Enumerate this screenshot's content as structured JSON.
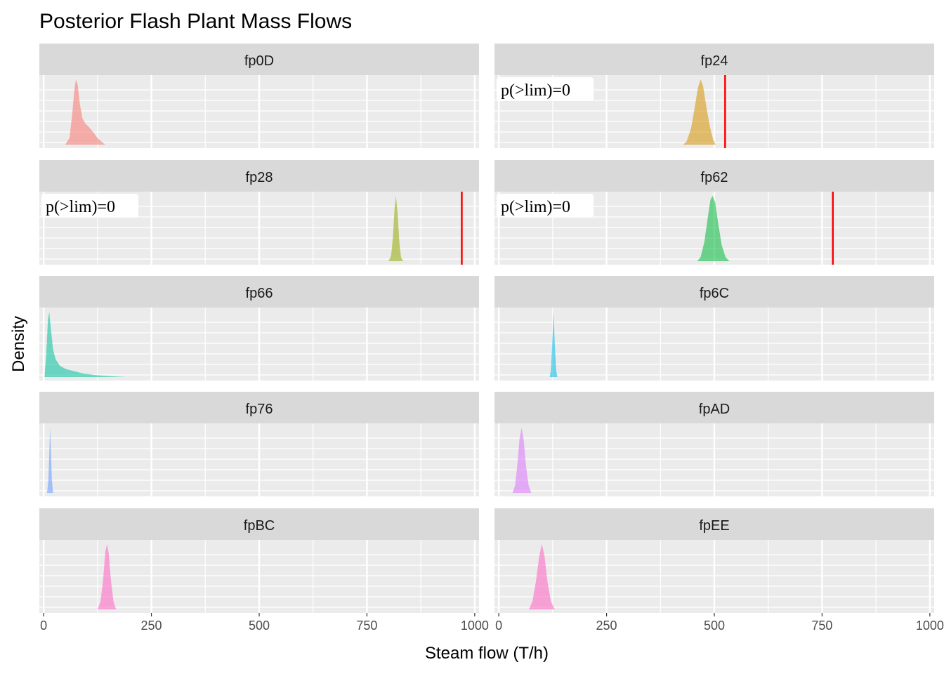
{
  "chart_data": {
    "type": "area",
    "chart_subtype": "faceted density",
    "title": "Posterior Flash Plant Mass Flows",
    "xlabel": "Steam flow (T/h)",
    "ylabel": "Density",
    "xlim": [
      -10,
      1010
    ],
    "x_ticks": [
      0,
      250,
      500,
      750,
      1000
    ],
    "x_tick_labels": [
      "0",
      "250",
      "500",
      "750",
      "1000"
    ],
    "y_ticks_shown": false,
    "grid": true,
    "legend": "none",
    "facet_columns": 2,
    "panels": [
      {
        "name": "fp0D",
        "color": "#F8766D",
        "density": [
          [
            50,
            0
          ],
          [
            60,
            0.1
          ],
          [
            66,
            0.45
          ],
          [
            72,
            0.88
          ],
          [
            75,
            1.0
          ],
          [
            79,
            0.92
          ],
          [
            84,
            0.62
          ],
          [
            90,
            0.4
          ],
          [
            97,
            0.32
          ],
          [
            105,
            0.27
          ],
          [
            115,
            0.19
          ],
          [
            125,
            0.1
          ],
          [
            135,
            0.04
          ],
          [
            143,
            0
          ]
        ]
      },
      {
        "name": "fp24",
        "color": "#D39200",
        "limit": 525,
        "annotation": "p(>lim)=0",
        "density": [
          [
            428,
            0
          ],
          [
            436,
            0.05
          ],
          [
            446,
            0.25
          ],
          [
            454,
            0.55
          ],
          [
            462,
            0.87
          ],
          [
            468,
            1.0
          ],
          [
            474,
            0.9
          ],
          [
            481,
            0.6
          ],
          [
            489,
            0.3
          ],
          [
            497,
            0.08
          ],
          [
            503,
            0
          ]
        ]
      },
      {
        "name": "fp28",
        "color": "#93AA00",
        "limit": 970,
        "annotation": "p(>lim)=0",
        "density": [
          [
            800,
            0
          ],
          [
            806,
            0.08
          ],
          [
            810,
            0.35
          ],
          [
            814,
            0.8
          ],
          [
            817,
            1.0
          ],
          [
            821,
            0.75
          ],
          [
            825,
            0.3
          ],
          [
            829,
            0.06
          ],
          [
            834,
            0
          ]
        ]
      },
      {
        "name": "fp62",
        "color": "#00BA38",
        "limit": 775,
        "annotation": "p(>lim)=0",
        "density": [
          [
            460,
            0
          ],
          [
            468,
            0.06
          ],
          [
            477,
            0.3
          ],
          [
            485,
            0.68
          ],
          [
            491,
            0.94
          ],
          [
            496,
            1.0
          ],
          [
            502,
            0.9
          ],
          [
            509,
            0.58
          ],
          [
            517,
            0.25
          ],
          [
            526,
            0.06
          ],
          [
            535,
            0
          ]
        ]
      },
      {
        "name": "fp66",
        "color": "#00C19F",
        "density": [
          [
            2,
            0
          ],
          [
            6,
            0.35
          ],
          [
            10,
            0.88
          ],
          [
            13,
            1.0
          ],
          [
            17,
            0.72
          ],
          [
            22,
            0.42
          ],
          [
            28,
            0.27
          ],
          [
            38,
            0.17
          ],
          [
            52,
            0.12
          ],
          [
            70,
            0.09
          ],
          [
            95,
            0.05
          ],
          [
            120,
            0.03
          ],
          [
            150,
            0.015
          ],
          [
            190,
            0
          ]
        ]
      },
      {
        "name": "fp6C",
        "color": "#00B9E3",
        "density": [
          [
            118,
            0
          ],
          [
            121,
            0.1
          ],
          [
            124,
            0.5
          ],
          [
            127,
            1.0
          ],
          [
            130,
            0.5
          ],
          [
            133,
            0.1
          ],
          [
            136,
            0
          ]
        ]
      },
      {
        "name": "fp76",
        "color": "#619CFF",
        "density": [
          [
            8,
            0
          ],
          [
            11,
            0.2
          ],
          [
            13,
            0.6
          ],
          [
            15,
            1.0
          ],
          [
            17,
            0.62
          ],
          [
            19,
            0.2
          ],
          [
            22,
            0
          ]
        ]
      },
      {
        "name": "fpAD",
        "color": "#DB72FB",
        "density": [
          [
            32,
            0
          ],
          [
            38,
            0.12
          ],
          [
            43,
            0.42
          ],
          [
            48,
            0.82
          ],
          [
            53,
            1.0
          ],
          [
            58,
            0.8
          ],
          [
            63,
            0.42
          ],
          [
            69,
            0.12
          ],
          [
            75,
            0
          ]
        ]
      },
      {
        "name": "fpBC",
        "color": "#FF61C3",
        "density": [
          [
            125,
            0
          ],
          [
            132,
            0.12
          ],
          [
            138,
            0.45
          ],
          [
            143,
            0.88
          ],
          [
            147,
            1.0
          ],
          [
            151,
            0.86
          ],
          [
            156,
            0.45
          ],
          [
            162,
            0.12
          ],
          [
            168,
            0
          ]
        ]
      },
      {
        "name": "fpEE",
        "color": "#FF61C3",
        "density": [
          [
            70,
            0
          ],
          [
            78,
            0.12
          ],
          [
            86,
            0.42
          ],
          [
            94,
            0.82
          ],
          [
            100,
            1.0
          ],
          [
            106,
            0.82
          ],
          [
            113,
            0.42
          ],
          [
            121,
            0.12
          ],
          [
            130,
            0
          ]
        ]
      }
    ]
  }
}
